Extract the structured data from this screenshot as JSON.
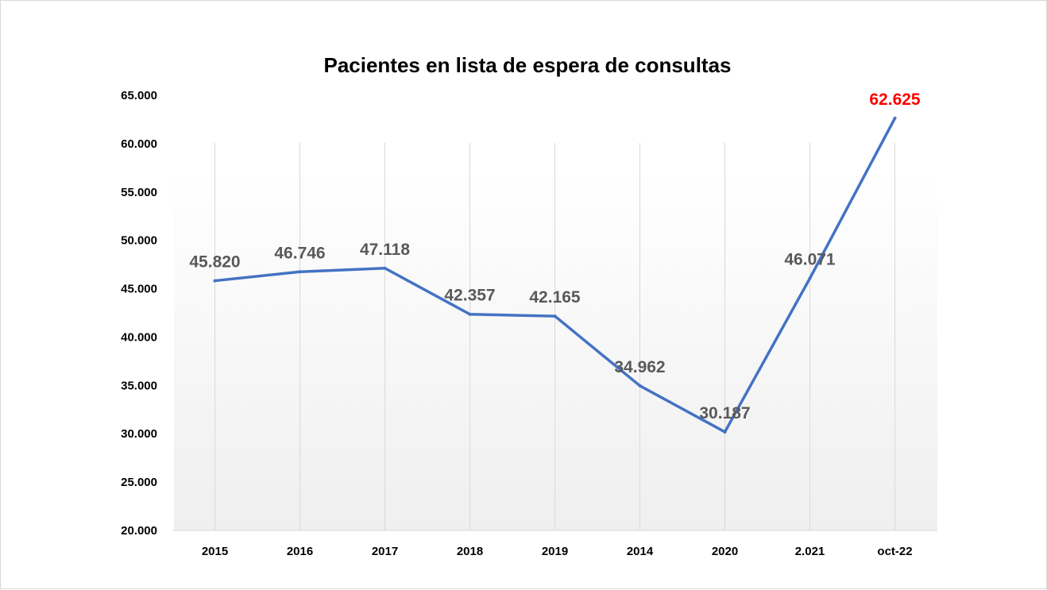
{
  "chart_data": {
    "type": "line",
    "title": "Pacientes en lista de espera de consultas",
    "xlabel": "",
    "ylabel": "",
    "categories": [
      "2015",
      "2016",
      "2017",
      "2018",
      "2019",
      "2014",
      "2020",
      "2.021",
      "oct-22"
    ],
    "series": [
      {
        "values": [
          45820,
          46746,
          47118,
          42357,
          42165,
          34962,
          30187,
          46071,
          62625
        ],
        "data_labels": [
          "45.820",
          "46.746",
          "47.118",
          "42.357",
          "42.165",
          "34.962",
          "30.187",
          "46.071",
          "62.625"
        ],
        "color": "#4472c4"
      }
    ],
    "ylim": [
      20000,
      65000
    ],
    "y_ticks": [
      65000,
      60000,
      55000,
      50000,
      45000,
      40000,
      35000,
      30000,
      25000,
      20000
    ],
    "y_tick_labels": [
      "65.000",
      "60.000",
      "55.000",
      "50.000",
      "45.000",
      "40.000",
      "35.000",
      "30.000",
      "25.000",
      "20.000"
    ],
    "grid": "vertical",
    "legend": "none",
    "highlight_last_label_color": "#ff0000",
    "data_label_color": "#595959",
    "plot_background": "gradient white to light gray"
  }
}
